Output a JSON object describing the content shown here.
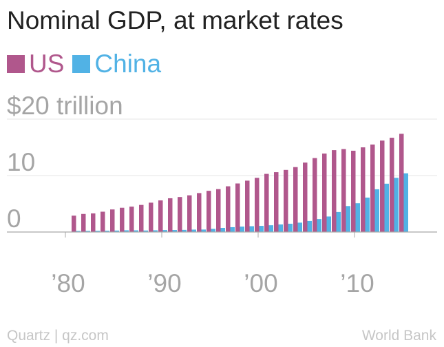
{
  "header": {
    "title": "Nominal GDP, at market rates"
  },
  "legend": [
    {
      "label": "US",
      "color": "#b0578c"
    },
    {
      "label": "China",
      "color": "#51b2e5"
    }
  ],
  "footer": {
    "credit": "Quartz | qz.com",
    "source": "World Bank"
  },
  "colors": {
    "axis": "#a8a8a8",
    "grid": "#e6e6e6",
    "tick_text": "#a5a5a5"
  },
  "chart_data": {
    "type": "bar",
    "title": "Nominal GDP, at market rates",
    "xlabel": "",
    "ylabel": "",
    "ylim": [
      0,
      20
    ],
    "yticks": [
      {
        "value": 20,
        "label": "$20 trillion"
      },
      {
        "value": 10,
        "label": "10"
      },
      {
        "value": 0,
        "label": "0"
      }
    ],
    "xticks": [
      {
        "value": 1980,
        "label": "’80"
      },
      {
        "value": 1990,
        "label": "’90"
      },
      {
        "value": 2000,
        "label": "’00"
      },
      {
        "value": 2010,
        "label": "’10"
      }
    ],
    "years": [
      1980,
      1981,
      1982,
      1983,
      1984,
      1985,
      1986,
      1987,
      1988,
      1989,
      1990,
      1991,
      1992,
      1993,
      1994,
      1995,
      1996,
      1997,
      1998,
      1999,
      2000,
      2001,
      2002,
      2003,
      2004,
      2005,
      2006,
      2007,
      2008,
      2009,
      2010,
      2011,
      2012,
      2013,
      2014
    ],
    "series": [
      {
        "name": "US",
        "color": "#b0578c",
        "values": [
          2.9,
          3.2,
          3.3,
          3.6,
          4.0,
          4.3,
          4.5,
          4.8,
          5.2,
          5.6,
          5.98,
          6.2,
          6.5,
          6.9,
          7.3,
          7.6,
          8.1,
          8.6,
          9.1,
          9.6,
          10.3,
          10.6,
          11.0,
          11.5,
          12.3,
          13.1,
          13.9,
          14.5,
          14.7,
          14.4,
          15.0,
          15.5,
          16.2,
          16.7,
          17.4
        ]
      },
      {
        "name": "China",
        "color": "#51b2e5",
        "values": [
          0.19,
          0.2,
          0.21,
          0.23,
          0.26,
          0.31,
          0.3,
          0.27,
          0.31,
          0.35,
          0.36,
          0.38,
          0.43,
          0.44,
          0.56,
          0.73,
          0.86,
          0.96,
          1.03,
          1.09,
          1.2,
          1.34,
          1.47,
          1.66,
          1.96,
          2.3,
          2.75,
          3.55,
          4.6,
          5.1,
          6.1,
          7.57,
          8.56,
          9.6,
          10.4
        ]
      }
    ]
  }
}
